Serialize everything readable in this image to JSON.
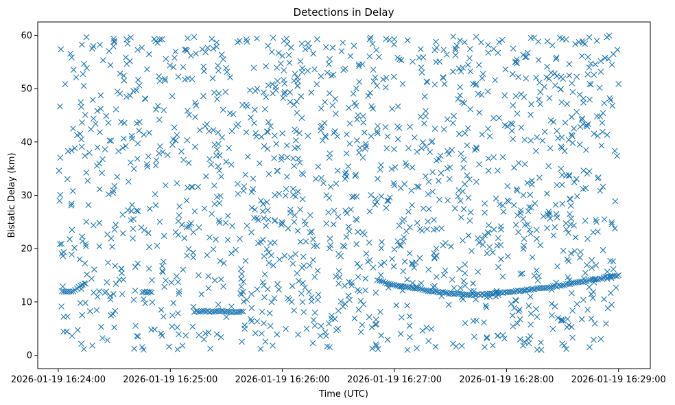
{
  "chart_data": {
    "type": "scatter",
    "title": "Detections in Delay",
    "xlabel": "Time (UTC)",
    "ylabel": "Bistatic Delay (km)",
    "x_tick_labels": [
      "2026-01-19 16:24:00",
      "2026-01-19 16:25:00",
      "2026-01-19 16:26:00",
      "2026-01-19 16:27:00",
      "2026-01-19 16:28:00",
      "2026-01-19 16:29:00"
    ],
    "xlim": [
      "2026-01-19 16:23:49",
      "2026-01-19 16:29:17"
    ],
    "y_ticks": [
      0,
      10,
      20,
      30,
      40,
      50,
      60
    ],
    "ylim": [
      -2.5,
      62.5
    ],
    "marker": "x",
    "color": "#1f77b4",
    "grid": false,
    "clutter": {
      "time_range": [
        "2026-01-19 16:24:00",
        "2026-01-19 16:29:00"
      ],
      "delay_range_km": [
        1,
        60
      ],
      "approx_count": 1500
    },
    "series": [
      {
        "name": "",
        "points": [
          [
            "2026-01-19 16:26:52",
            14.0
          ],
          [
            "2026-01-19 16:26:55",
            13.6
          ],
          [
            "2026-01-19 16:27:00",
            13.2
          ],
          [
            "2026-01-19 16:27:05",
            12.9
          ],
          [
            "2026-01-19 16:27:10",
            12.6
          ],
          [
            "2026-01-19 16:27:15",
            12.3
          ],
          [
            "2026-01-19 16:27:20",
            12.0
          ],
          [
            "2026-01-19 16:27:25",
            11.8
          ],
          [
            "2026-01-19 16:27:30",
            11.6
          ],
          [
            "2026-01-19 16:27:36",
            11.5
          ],
          [
            "2026-01-19 16:27:41",
            11.3
          ],
          [
            "2026-01-19 16:27:50",
            11.5
          ],
          [
            "2026-01-19 16:28:00",
            11.8
          ],
          [
            "2026-01-19 16:28:10",
            12.2
          ],
          [
            "2026-01-19 16:28:20",
            12.6
          ],
          [
            "2026-01-19 16:28:30",
            13.1
          ],
          [
            "2026-01-19 16:28:40",
            13.8
          ],
          [
            "2026-01-19 16:28:50",
            14.4
          ],
          [
            "2026-01-19 16:29:00",
            15.0
          ]
        ]
      },
      {
        "name": "",
        "points": [
          [
            "2026-01-19 16:24:02",
            12.0
          ],
          [
            "2026-01-19 16:24:08",
            12.0
          ],
          [
            "2026-01-19 16:24:14",
            13.5
          ],
          [
            "2026-01-19 16:24:45",
            11.8
          ],
          [
            "2026-01-19 16:24:50",
            11.8
          ],
          [
            "2026-01-19 16:25:14",
            8.3
          ],
          [
            "2026-01-19 16:25:22",
            8.2
          ],
          [
            "2026-01-19 16:25:30",
            8.2
          ],
          [
            "2026-01-19 16:25:36",
            8.1
          ],
          [
            "2026-01-19 16:25:39",
            8.2
          ]
        ]
      }
    ]
  }
}
